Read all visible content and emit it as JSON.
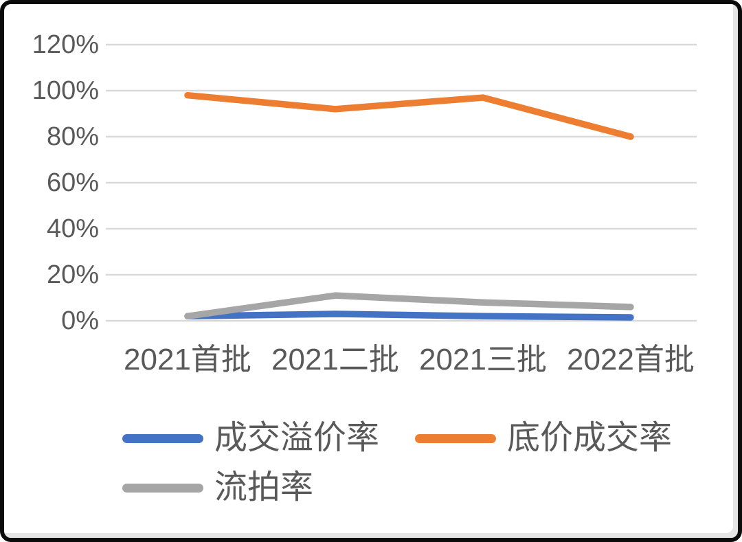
{
  "colors": {
    "premium_rate_blue": "#4472C4",
    "floor_deal_rate_orange": "#ED7D31",
    "failed_auction_gray": "#A6A6A6",
    "gridline": "#D9D9D9",
    "axis_text": "#595959",
    "frame_border": "#0b0b0b"
  },
  "chart_data": {
    "type": "line",
    "categories": [
      "2021首批",
      "2021二批",
      "2021三批",
      "2022首批"
    ],
    "series": [
      {
        "name": "成交溢价率",
        "color": "#4472C4",
        "values": [
          2,
          3,
          2,
          1.5
        ]
      },
      {
        "name": "底价成交率",
        "color": "#ED7D31",
        "values": [
          98,
          92,
          97,
          80
        ]
      },
      {
        "name": "流拍率",
        "color": "#A6A6A6",
        "values": [
          2,
          11,
          8,
          6
        ]
      }
    ],
    "title": "",
    "xlabel": "",
    "ylabel": "",
    "ylim": [
      0,
      120
    ],
    "ytick_step": 20,
    "ytick_labels": [
      "0%",
      "20%",
      "40%",
      "60%",
      "80%",
      "100%",
      "120%"
    ],
    "grid": true,
    "legend_position": "bottom"
  }
}
